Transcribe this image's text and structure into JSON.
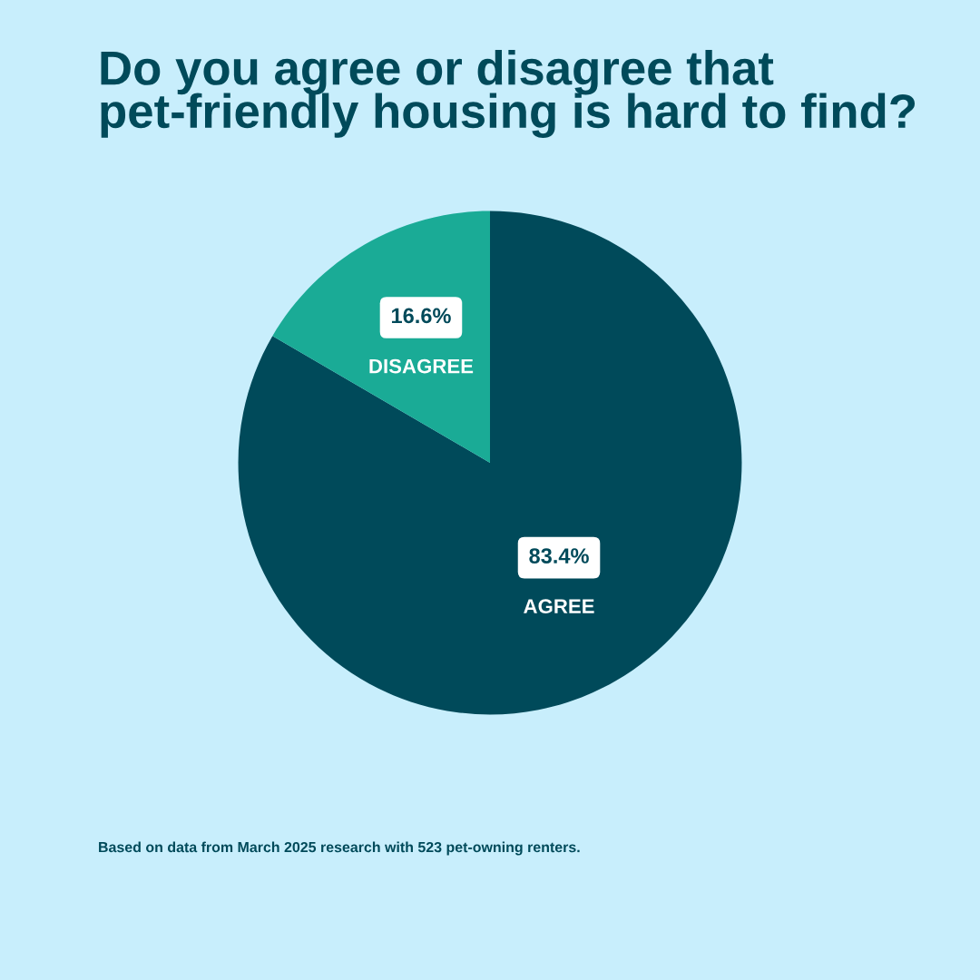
{
  "chart_data": {
    "type": "pie",
    "title": "Do you agree or disagree that pet-friendly housing is hard to find?",
    "categories": [
      "AGREE",
      "DISAGREE"
    ],
    "values": [
      83.4,
      16.6
    ],
    "value_labels": [
      "83.4%",
      "16.6%"
    ],
    "colors": [
      "#004a5a",
      "#1aab96"
    ],
    "annotations": [
      "Based on data from March 2025 research with 523 pet-owning renters."
    ]
  }
}
